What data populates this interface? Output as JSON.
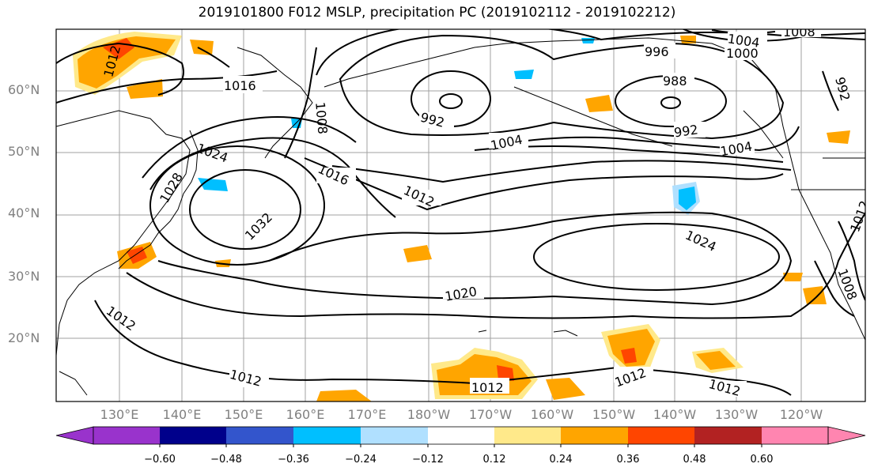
{
  "title": "2019101800 F012 MSLP, precipitation PC (2019102112 - 2019102212)",
  "lat_labels": [
    "60°N",
    "50°N",
    "40°N",
    "30°N",
    "20°N"
  ],
  "lon_labels": [
    "130°E",
    "140°E",
    "150°E",
    "160°E",
    "170°E",
    "180°W",
    "170°W",
    "160°W",
    "150°W",
    "140°W",
    "130°W",
    "120°W"
  ],
  "contour_labels": [
    "1016",
    "1012",
    "1008",
    "992",
    "996",
    "1004",
    "1000",
    "1008",
    "988",
    "992",
    "992",
    "1004",
    "1004",
    "1024",
    "1028",
    "1016",
    "1012",
    "1032",
    "1024",
    "1020",
    "1012",
    "1012",
    "1012",
    "1012",
    "1012",
    "1008",
    "1012"
  ],
  "colorbar": {
    "colors": [
      "#9933cc",
      "#00008b",
      "#3355cc",
      "#00bfff",
      "#b0e0ff",
      "#ffffff",
      "#ffe98a",
      "#ffa500",
      "#ff4500",
      "#b22222",
      "#ff85b0"
    ],
    "tick_labels": [
      "−0.60",
      "−0.48",
      "−0.36",
      "−0.24",
      "−0.12",
      "0.12",
      "0.24",
      "0.36",
      "0.48",
      "0.60"
    ]
  }
}
